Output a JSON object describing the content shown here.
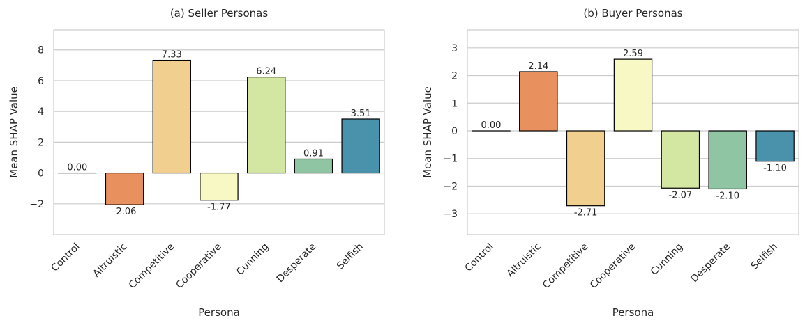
{
  "colors": [
    "#3288bd",
    "#e8915f",
    "#f0cf8f",
    "#f7f8c3",
    "#d3e7a3",
    "#8fc5a3",
    "#4a92ab"
  ],
  "chart_data": [
    {
      "type": "bar",
      "title": "(a) Seller Personas",
      "xlabel": "Persona",
      "ylabel": "Mean SHAP Value",
      "categories": [
        "Control",
        "Altruistic",
        "Competitive",
        "Cooperative",
        "Cunning",
        "Desperate",
        "Selfish"
      ],
      "values": [
        0.0,
        -2.06,
        7.33,
        -1.77,
        6.24,
        0.91,
        3.51
      ],
      "value_labels": [
        "0.00",
        "-2.06",
        "7.33",
        "-1.77",
        "6.24",
        "0.91",
        "3.51"
      ],
      "yticks": [
        -2,
        0,
        2,
        4,
        6,
        8
      ],
      "ytick_labels": [
        "−2",
        "0",
        "2",
        "4",
        "6",
        "8"
      ],
      "ylim": [
        -4.0,
        9.3
      ],
      "grid": true
    },
    {
      "type": "bar",
      "title": "(b) Buyer Personas",
      "xlabel": "Persona",
      "ylabel": "Mean SHAP Value",
      "categories": [
        "Control",
        "Altruistic",
        "Competitive",
        "Cooperative",
        "Cunning",
        "Desperate",
        "Selfish"
      ],
      "values": [
        0.0,
        2.14,
        -2.71,
        2.59,
        -2.07,
        -2.1,
        -1.1
      ],
      "value_labels": [
        "0.00",
        "2.14",
        "-2.71",
        "2.59",
        "-2.07",
        "-2.10",
        "-1.10"
      ],
      "yticks": [
        -3,
        -2,
        -1,
        0,
        1,
        2,
        3
      ],
      "ytick_labels": [
        "−3",
        "−2",
        "−1",
        "0",
        "1",
        "2",
        "3"
      ],
      "ylim": [
        -3.75,
        3.65
      ],
      "grid": true
    }
  ]
}
